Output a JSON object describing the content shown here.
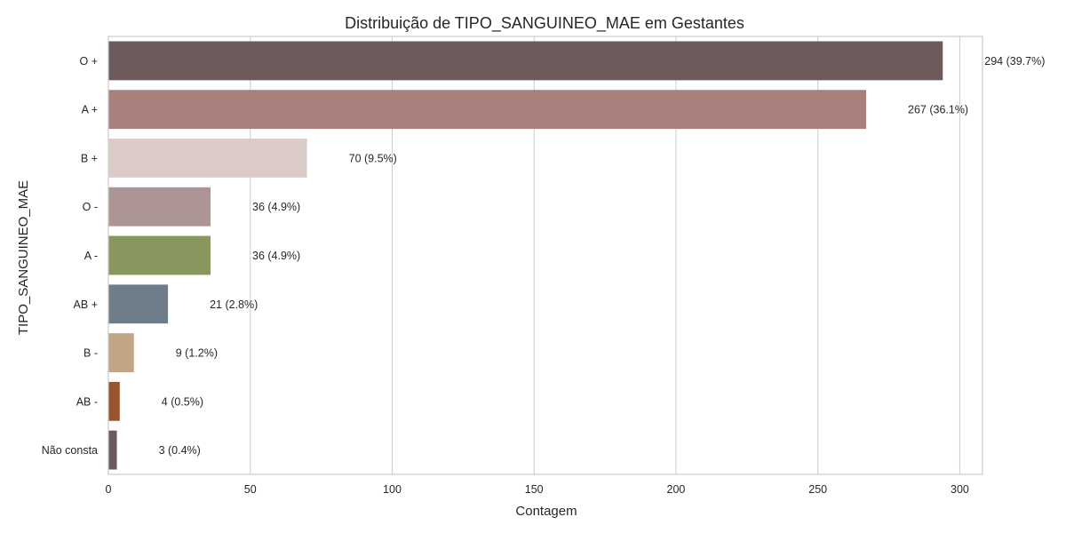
{
  "chart_data": {
    "type": "bar",
    "orientation": "horizontal",
    "title": "Distribuição de TIPO_SANGUINEO_MAE em Gestantes",
    "xlabel": "Contagem",
    "ylabel": "TIPO_SANGUINEO_MAE",
    "xlim": [
      0,
      308
    ],
    "xticks": [
      0,
      50,
      100,
      150,
      200,
      250,
      300
    ],
    "grid": true,
    "legend": "none",
    "categories": [
      "O +",
      "A +",
      "B +",
      "O -",
      "A -",
      "AB +",
      "B -",
      "AB -",
      "Não consta"
    ],
    "values": [
      294,
      267,
      70,
      36,
      36,
      21,
      9,
      4,
      3
    ],
    "data_labels": [
      "294 (39.7%)",
      "267 (36.1%)",
      "70 (9.5%)",
      "36 (4.9%)",
      "36 (4.9%)",
      "21 (2.8%)",
      "9 (1.2%)",
      "4 (0.5%)",
      "3 (0.4%)"
    ],
    "colors": [
      "#6d5a5a",
      "#a97f7b",
      "#dbcbc6",
      "#ad9595",
      "#87975d",
      "#6f7d8a",
      "#c2a584",
      "#9a532f",
      "#6d5a5a"
    ]
  }
}
